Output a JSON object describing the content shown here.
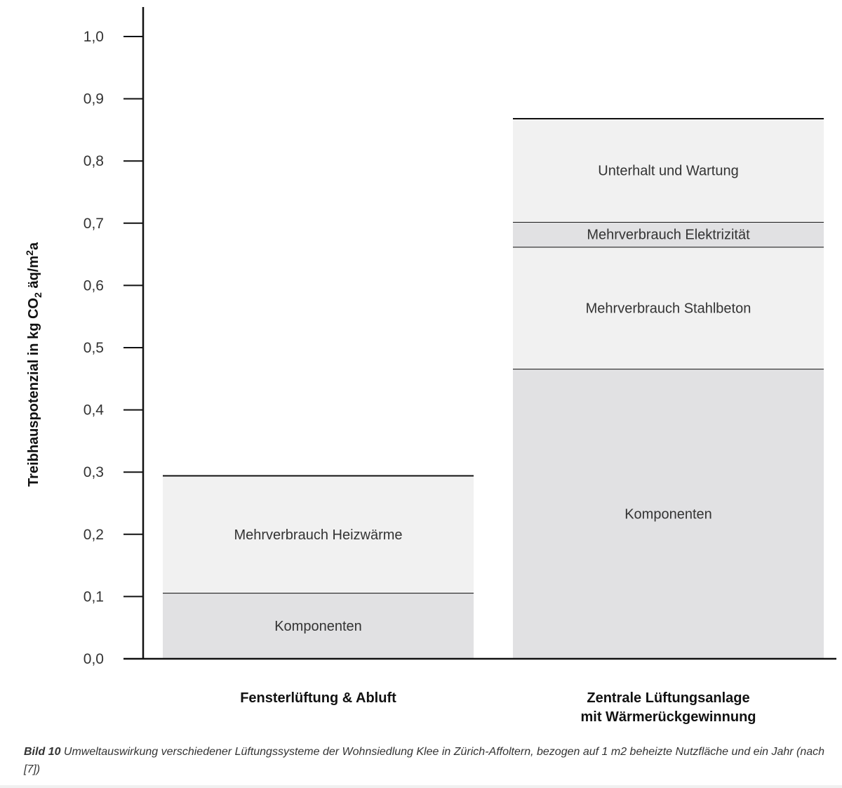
{
  "chart_data": {
    "type": "bar",
    "stacked": true,
    "ylabel": "Treibhauspotenzial in kg CO2 äq/m2a",
    "ylabel_parts": {
      "main": "Treibhauspotenzial in kg CO",
      "sub": "2",
      "mid": " äq/m",
      "sup": "2",
      "end": "a"
    },
    "ylim": [
      0,
      1.0
    ],
    "yticks": [
      "0,0",
      "0,1",
      "0,2",
      "0,3",
      "0,4",
      "0,5",
      "0,6",
      "0,7",
      "0,8",
      "0,9",
      "1,0"
    ],
    "grid": false,
    "categories": [
      [
        "Fensterlüftung & Abluft"
      ],
      [
        "Zentrale Lüftungsanlage",
        "mit Wärmerückgewinnung"
      ]
    ],
    "bars": [
      {
        "segments": [
          {
            "label": "Komponenten",
            "value": 0.106,
            "color": "#e1e1e3"
          },
          {
            "label": "Mehrverbrauch Heizwärme",
            "value": 0.188,
            "color": "#f1f1f1"
          }
        ]
      },
      {
        "segments": [
          {
            "label": "Komponenten",
            "value": 0.466,
            "color": "#e1e1e3"
          },
          {
            "label": "Mehrverbrauch Stahlbeton",
            "value": 0.196,
            "color": "#f1f1f1"
          },
          {
            "label": "Mehrverbrauch Elektrizität",
            "value": 0.04,
            "color": "#e1e1e3"
          },
          {
            "label": "Unterhalt und Wartung",
            "value": 0.166,
            "color": "#f1f1f1"
          }
        ]
      }
    ]
  },
  "caption": {
    "label": "Bild 10",
    "text": " Umweltauswirkung verschiedener Lüftungssysteme der Wohnsiedlung Klee in Zürich-Affoltern, bezogen auf 1 m2 beheizte Nutzfläche und ein Jahr (nach [7])"
  }
}
